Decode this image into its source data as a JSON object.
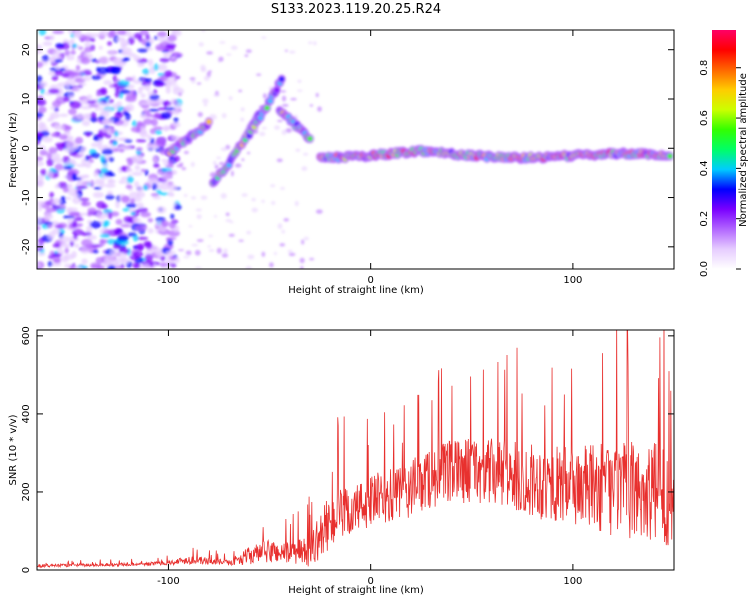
{
  "title": "S133.2023.119.20.25.R24",
  "chart_data": [
    {
      "type": "heatmap",
      "xlabel": "Height of straight line (km)",
      "ylabel": "Frequency (Hz)",
      "xlim": [
        -165,
        150
      ],
      "ylim": [
        -24.5,
        24
      ],
      "x_ticks": [
        -100,
        0,
        100
      ],
      "x_tick_labels": [
        "-100",
        "0",
        "100"
      ],
      "y_ticks": [
        -20,
        -10,
        0,
        10,
        20
      ],
      "y_tick_labels": [
        "-20",
        "-10",
        "0",
        "10",
        "20"
      ],
      "colorbar": {
        "label": "Normalized spectral amplitude",
        "range": [
          0,
          0.95
        ],
        "ticks": [
          0.0,
          0.2,
          0.4,
          0.6,
          0.8
        ],
        "tick_labels": [
          "0.0",
          "0.2",
          "0.4",
          "0.6",
          "0.8"
        ],
        "colormap": [
          "#ffffff",
          "#e6ccff",
          "#b266ff",
          "#7a00ff",
          "#0000ff",
          "#00ccff",
          "#00ff66",
          "#33ff00",
          "#ccff00",
          "#ffcc00",
          "#ff6600",
          "#ff0000",
          "#ff0066"
        ]
      },
      "ridge": {
        "segments": [
          {
            "x": [
              -100,
              -90,
              -80
            ],
            "y": [
              -1,
              2,
              5
            ]
          },
          {
            "x": [
              -78,
              -70,
              -62,
              -55
            ],
            "y": [
              -7,
              -3,
              2,
              7
            ]
          },
          {
            "x": [
              -60,
              -52,
              -44
            ],
            "y": [
              3,
              8,
              14
            ]
          },
          {
            "x": [
              -45,
              -38,
              -30
            ],
            "y": [
              8,
              5,
              2
            ]
          },
          {
            "x": [
              -25,
              0,
              25,
              50,
              75,
              100,
              125,
              148
            ],
            "y": [
              -2,
              -1.5,
              -0.5,
              -1.5,
              -2,
              -1.5,
              -1,
              -1.5
            ]
          }
        ]
      }
    },
    {
      "type": "line",
      "xlabel": "Height of straight line (km)",
      "ylabel": "SNR (10 * v/v)",
      "xlim": [
        -165,
        150
      ],
      "ylim": [
        0,
        615
      ],
      "x_ticks": [
        -100,
        0,
        100
      ],
      "x_tick_labels": [
        "-100",
        "0",
        "100"
      ],
      "y_ticks": [
        0,
        200,
        400,
        600
      ],
      "y_tick_labels": [
        "0",
        "200",
        "400",
        "600"
      ],
      "color": "#e8302e",
      "envelope": {
        "x": [
          -165,
          -110,
          -100,
          -90,
          -80,
          -70,
          -60,
          -50,
          -40,
          -30,
          -25,
          -20,
          -10,
          0,
          10,
          20,
          30,
          50,
          70,
          90,
          110,
          130,
          150
        ],
        "base": [
          10,
          15,
          18,
          25,
          22,
          18,
          35,
          45,
          40,
          45,
          80,
          120,
          140,
          170,
          180,
          200,
          230,
          250,
          230,
          210,
          200,
          190,
          180
        ],
        "spread": [
          8,
          10,
          12,
          25,
          20,
          15,
          50,
          70,
          60,
          90,
          130,
          160,
          150,
          150,
          160,
          170,
          180,
          190,
          200,
          220,
          250,
          280,
          300
        ]
      }
    }
  ]
}
